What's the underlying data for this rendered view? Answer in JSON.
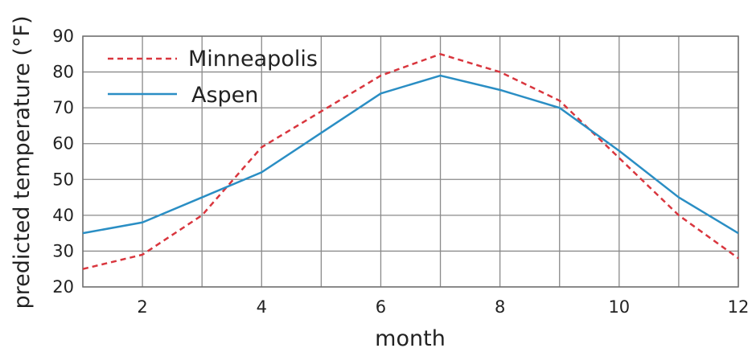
{
  "chart_data": {
    "type": "line",
    "title": "",
    "xlabel": "month",
    "ylabel": "predicted temperature (°F)",
    "xlim": [
      1,
      12
    ],
    "ylim": [
      20,
      90
    ],
    "xticks": [
      2,
      4,
      6,
      8,
      10,
      12
    ],
    "yticks": [
      20,
      30,
      40,
      50,
      60,
      70,
      80,
      90
    ],
    "grid": true,
    "legend_position": "top-left",
    "x": [
      1,
      2,
      3,
      4,
      5,
      6,
      7,
      8,
      9,
      10,
      11,
      12
    ],
    "series": [
      {
        "name": "Minneapolis",
        "color": "#d9363e",
        "style": "dashed",
        "values": [
          25,
          29,
          40,
          59,
          69,
          79,
          85,
          80,
          72,
          56,
          40,
          28
        ]
      },
      {
        "name": "Aspen",
        "color": "#2a8ec4",
        "style": "solid",
        "values": [
          35,
          38,
          45,
          52,
          63,
          74,
          79,
          75,
          70,
          58,
          45,
          35
        ]
      }
    ]
  }
}
